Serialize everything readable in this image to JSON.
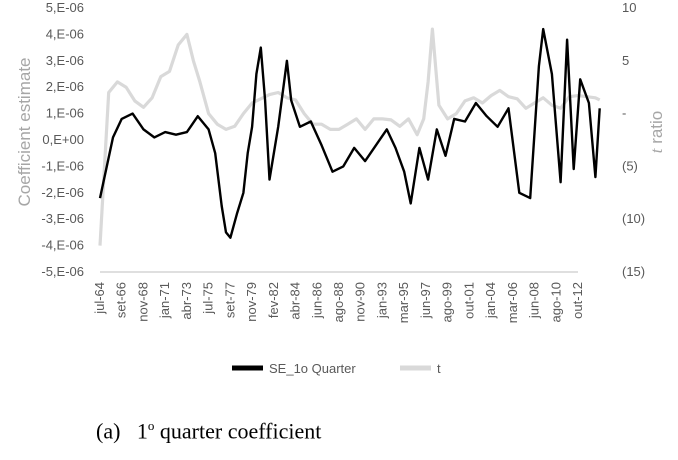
{
  "chart_data": {
    "type": "line",
    "title": "",
    "y_label": "Coefficient estimate",
    "y2_label_italic": "t",
    "y2_label_rest": " ratio",
    "y_ticks": [
      "5,E-06",
      "4,E-06",
      "3,E-06",
      "2,E-06",
      "1,E-06",
      "0,E+00",
      "-1,E-06",
      "-2,E-06",
      "-3,E-06",
      "-4,E-06",
      "-5,E-06"
    ],
    "y_range": [
      -5e-06,
      5e-06
    ],
    "y2_ticks": [
      "10",
      "5",
      "-",
      "(5)",
      "(10)",
      "(15)"
    ],
    "y2_range": [
      -15,
      10
    ],
    "x_tick_labels": [
      "jul-64",
      "set-66",
      "nov-68",
      "jan-71",
      "abr-73",
      "jul-75",
      "set-77",
      "nov-79",
      "fev-82",
      "abr-84",
      "jun-86",
      "ago-88",
      "nov-90",
      "jan-93",
      "mar-95",
      "jun-97",
      "ago-99",
      "out-01",
      "jan-04",
      "mar-06",
      "jun-08",
      "ago-10",
      "out-12"
    ],
    "legend_position": "bottom",
    "grid": false,
    "series": [
      {
        "name": "SE_1o Quarter",
        "color": "#000000",
        "axis": "left",
        "points": [
          [
            0,
            -2.2e-06
          ],
          [
            0.6,
            1e-07
          ],
          [
            1,
            8e-07
          ],
          [
            1.5,
            1e-06
          ],
          [
            2,
            4e-07
          ],
          [
            2.5,
            1e-07
          ],
          [
            3,
            3e-07
          ],
          [
            3.5,
            2e-07
          ],
          [
            4,
            3e-07
          ],
          [
            4.5,
            9e-07
          ],
          [
            5,
            4e-07
          ],
          [
            5.3,
            -5e-07
          ],
          [
            5.6,
            -2.5e-06
          ],
          [
            5.8,
            -3.5e-06
          ],
          [
            6,
            -3.7e-06
          ],
          [
            6.3,
            -2.8e-06
          ],
          [
            6.6,
            -2e-06
          ],
          [
            6.8,
            -5e-07
          ],
          [
            7,
            5e-07
          ],
          [
            7.2,
            2.5e-06
          ],
          [
            7.4,
            3.5e-06
          ],
          [
            7.6,
            1.5e-06
          ],
          [
            7.8,
            -1.5e-06
          ],
          [
            8.2,
            5e-07
          ],
          [
            8.6,
            3e-06
          ],
          [
            8.8,
            1.5e-06
          ],
          [
            9.2,
            5e-07
          ],
          [
            9.7,
            7e-07
          ],
          [
            10.2,
            -2e-07
          ],
          [
            10.7,
            -1.2e-06
          ],
          [
            11.2,
            -1e-06
          ],
          [
            11.7,
            -3e-07
          ],
          [
            12.2,
            -8e-07
          ],
          [
            12.7,
            -2e-07
          ],
          [
            13.2,
            4e-07
          ],
          [
            13.6,
            -3e-07
          ],
          [
            14,
            -1.2e-06
          ],
          [
            14.3,
            -2.4e-06
          ],
          [
            14.7,
            -3e-07
          ],
          [
            15.1,
            -1.5e-06
          ],
          [
            15.5,
            4e-07
          ],
          [
            15.9,
            -6e-07
          ],
          [
            16.3,
            8e-07
          ],
          [
            16.8,
            7e-07
          ],
          [
            17.3,
            1.4e-06
          ],
          [
            17.8,
            9e-07
          ],
          [
            18.3,
            5e-07
          ],
          [
            18.8,
            1.2e-06
          ],
          [
            19.3,
            -2e-06
          ],
          [
            19.8,
            -2.2e-06
          ],
          [
            20.2,
            2.8e-06
          ],
          [
            20.4,
            4.2e-06
          ],
          [
            20.8,
            2.5e-06
          ],
          [
            21.2,
            -1.6e-06
          ],
          [
            21.5,
            3.8e-06
          ],
          [
            21.8,
            -1.1e-06
          ],
          [
            22.1,
            2.3e-06
          ],
          [
            22.5,
            1.4e-06
          ],
          [
            22.8,
            -1.4e-06
          ],
          [
            23,
            1.2e-06
          ]
        ]
      },
      {
        "name": "t",
        "color": "#d9d9d9",
        "axis": "right",
        "points": [
          [
            0,
            -12.5
          ],
          [
            0.4,
            2
          ],
          [
            0.8,
            3
          ],
          [
            1.2,
            2.5
          ],
          [
            1.6,
            1.2
          ],
          [
            2,
            0.6
          ],
          [
            2.4,
            1.5
          ],
          [
            2.8,
            3.5
          ],
          [
            3.2,
            4
          ],
          [
            3.6,
            6.5
          ],
          [
            4,
            7.5
          ],
          [
            4.3,
            5
          ],
          [
            4.6,
            3
          ],
          [
            5,
            0
          ],
          [
            5.4,
            -1
          ],
          [
            5.8,
            -1.5
          ],
          [
            6.2,
            -1.2
          ],
          [
            6.6,
            0
          ],
          [
            7,
            1
          ],
          [
            7.4,
            1.4
          ],
          [
            7.8,
            1.8
          ],
          [
            8.2,
            2
          ],
          [
            8.6,
            1.5
          ],
          [
            9,
            1.3
          ],
          [
            9.4,
            0
          ],
          [
            9.8,
            -1
          ],
          [
            10.2,
            -1
          ],
          [
            10.6,
            -1.5
          ],
          [
            11,
            -1.5
          ],
          [
            11.4,
            -1
          ],
          [
            11.8,
            -0.5
          ],
          [
            12.2,
            -1.5
          ],
          [
            12.6,
            -0.5
          ],
          [
            13,
            -0.5
          ],
          [
            13.4,
            -0.6
          ],
          [
            13.8,
            -1.2
          ],
          [
            14.2,
            -0.5
          ],
          [
            14.6,
            -2
          ],
          [
            14.9,
            -0.5
          ],
          [
            15.1,
            3
          ],
          [
            15.3,
            8
          ],
          [
            15.6,
            0.8
          ],
          [
            16,
            -0.5
          ],
          [
            16.4,
            0
          ],
          [
            16.8,
            1.2
          ],
          [
            17.2,
            1.5
          ],
          [
            17.6,
            1
          ],
          [
            18,
            1.7
          ],
          [
            18.4,
            2.2
          ],
          [
            18.8,
            1.6
          ],
          [
            19.2,
            1.4
          ],
          [
            19.6,
            0.5
          ],
          [
            20,
            1
          ],
          [
            20.4,
            1.5
          ],
          [
            20.8,
            0.8
          ],
          [
            21.2,
            0.5
          ],
          [
            21.6,
            1.6
          ],
          [
            22,
            1.7
          ],
          [
            22.4,
            1.6
          ],
          [
            22.8,
            1.5
          ],
          [
            23,
            1.3
          ]
        ]
      }
    ]
  },
  "caption": {
    "label": "(a)",
    "number": "1",
    "superscript": "o",
    "text": " quarter coefficient"
  }
}
